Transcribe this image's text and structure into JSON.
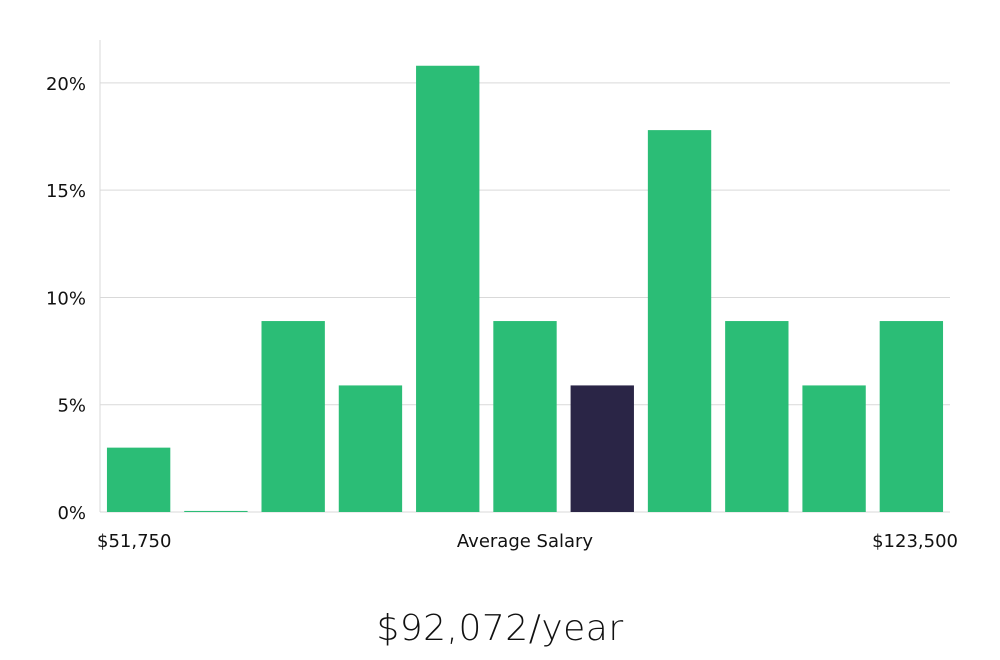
{
  "colors": {
    "bar": "#2bbd76",
    "highlight": "#2a2546",
    "grid": "#d9d9d9",
    "text": "#111111"
  },
  "chart_data": {
    "type": "bar",
    "title": "",
    "ylabel": "",
    "xlabel": "Average Salary",
    "x_range_labels": {
      "min": "$51,750",
      "max": "$123,500"
    },
    "y_ticks": [
      0,
      5,
      10,
      15,
      20
    ],
    "y_tick_format": "{v}%",
    "ylim": [
      0,
      22
    ],
    "grid": true,
    "values": [
      3.0,
      0.05,
      8.9,
      5.9,
      20.8,
      8.9,
      5.9,
      17.8,
      8.9,
      5.9,
      8.9
    ],
    "highlight_index": 6
  },
  "summary": {
    "salary": "$92,072/year"
  }
}
